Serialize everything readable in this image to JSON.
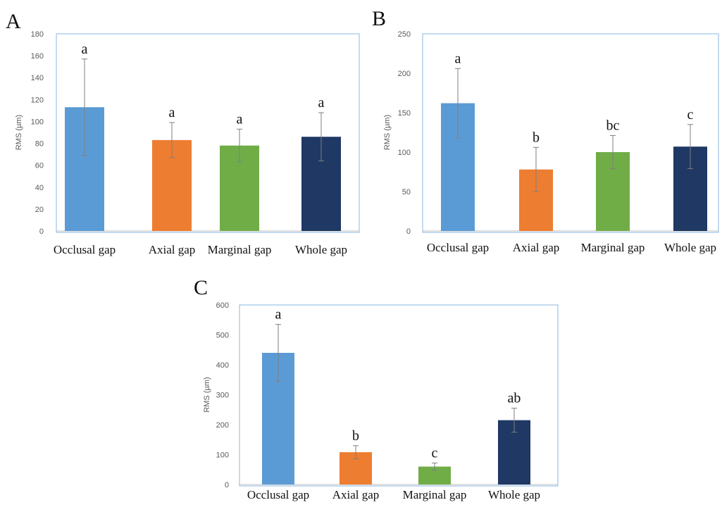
{
  "colors": {
    "Occlusal gap": "#5b9bd5",
    "Axial gap": "#ed7d31",
    "Marginal gap": "#70ad47",
    "Whole gap": "#1f3864",
    "frame": "#9dc3e6",
    "axis": "#bfbfbf",
    "errorbar": "#7f7f7f"
  },
  "chart_data": [
    {
      "panel": "A",
      "type": "bar",
      "ylabel": "RMS (µm)",
      "ylim": [
        0,
        180
      ],
      "yticks": [
        0,
        20,
        40,
        60,
        80,
        100,
        120,
        140,
        160,
        180
      ],
      "categories": [
        "Occlusal gap",
        "Axial gap",
        "Marginal gap",
        "Whole gap"
      ],
      "values": [
        113,
        83,
        78,
        86
      ],
      "errors": [
        44,
        16,
        15,
        22
      ],
      "significance": [
        "a",
        "a",
        "a",
        "a"
      ]
    },
    {
      "panel": "B",
      "type": "bar",
      "ylabel": "RMS (µm)",
      "ylim": [
        0,
        250
      ],
      "yticks": [
        0,
        50,
        100,
        150,
        200,
        250
      ],
      "categories": [
        "Occlusal gap",
        "Axial gap",
        "Marginal gap",
        "Whole gap"
      ],
      "values": [
        162,
        78,
        100,
        107
      ],
      "errors": [
        44,
        28,
        21,
        28
      ],
      "significance": [
        "a",
        "b",
        "bc",
        "c"
      ]
    },
    {
      "panel": "C",
      "type": "bar",
      "ylabel": "RMS (µm)",
      "ylim": [
        0,
        600
      ],
      "yticks": [
        0,
        100,
        200,
        300,
        400,
        500,
        600
      ],
      "categories": [
        "Occlusal gap",
        "Axial gap",
        "Marginal gap",
        "Whole gap"
      ],
      "values": [
        440,
        108,
        60,
        215
      ],
      "errors": [
        95,
        22,
        12,
        40
      ],
      "significance": [
        "a",
        "b",
        "c",
        "ab"
      ]
    }
  ]
}
